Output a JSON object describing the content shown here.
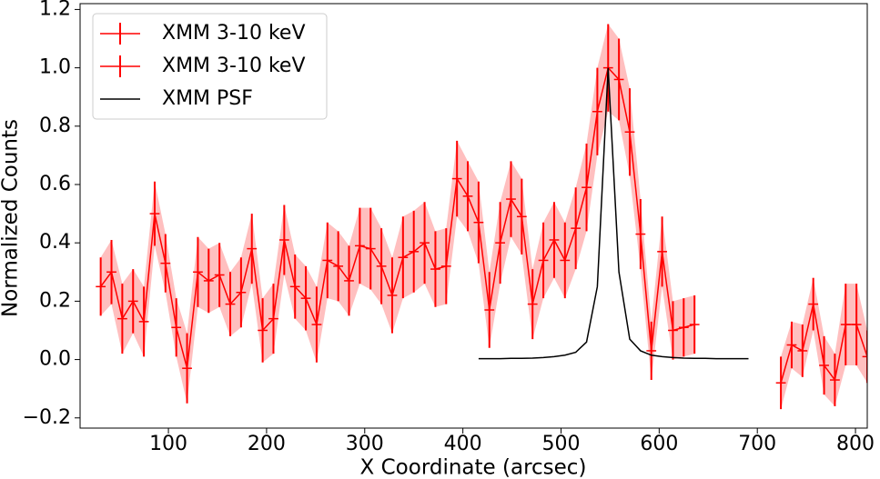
{
  "chart_data": {
    "type": "errorbar",
    "xlabel": "X Coordinate (arcsec)",
    "ylabel": "Normalized Counts",
    "xlim": [
      10,
      812
    ],
    "ylim": [
      -0.235,
      1.22
    ],
    "xticks": [
      100,
      200,
      300,
      400,
      500,
      600,
      700,
      800
    ],
    "yticks": [
      {
        "value": -0.2,
        "label": "−0.2"
      },
      {
        "value": 0,
        "label": "0.0"
      },
      0.2,
      0.4,
      0.6,
      0.8,
      {
        "value": 1,
        "label": "1.0"
      },
      1.2
    ],
    "xerr": 5,
    "legend_position": "upper left",
    "series": [
      {
        "name": "XMM 3-10 keV",
        "color": "#ff0000",
        "x": [
          31,
          42,
          53,
          64,
          75,
          86,
          97,
          108,
          119,
          130,
          141,
          152,
          163,
          174,
          185,
          196,
          207,
          218,
          229,
          240,
          251,
          262,
          273,
          284,
          295,
          306,
          317,
          328,
          339,
          350,
          361,
          372,
          383,
          394,
          405,
          416,
          427,
          438,
          449,
          460,
          471,
          482,
          493,
          504,
          515,
          526,
          537,
          548,
          559,
          570,
          581,
          592,
          603,
          614,
          625,
          636,
          647,
          658,
          669,
          680,
          691,
          702,
          713,
          724,
          735,
          746,
          757,
          768,
          779,
          790,
          801,
          812
        ],
        "values": [
          0.25,
          0.3,
          0.14,
          0.2,
          0.13,
          0.5,
          0.33,
          0.11,
          -0.03,
          0.3,
          0.27,
          0.29,
          0.19,
          0.23,
          0.38,
          0.1,
          0.14,
          0.41,
          0.25,
          0.21,
          0.12,
          0.34,
          0.32,
          0.27,
          0.39,
          0.38,
          0.32,
          0.22,
          0.35,
          0.37,
          0.4,
          0.31,
          0.32,
          0.62,
          0.56,
          0.47,
          0.17,
          0.4,
          0.55,
          0.49,
          0.19,
          0.34,
          0.41,
          0.34,
          0.45,
          0.59,
          0.85,
          1.0,
          0.96,
          0.78,
          0.43,
          0.03,
          0.37,
          0.1,
          0.11,
          0.12,
          null,
          null,
          null,
          null,
          null,
          null,
          null,
          -0.08,
          0.05,
          0.03,
          0.19,
          -0.02,
          -0.07,
          0.12,
          0.12,
          0.01
        ]
      },
      {
        "name": "XMM 3-10 keV",
        "color": "#ff0000",
        "fill_alpha": 0.25,
        "errors": [
          0.1,
          0.11,
          0.12,
          0.11,
          0.12,
          0.11,
          0.1,
          0.1,
          0.12,
          0.12,
          0.11,
          0.11,
          0.11,
          0.12,
          0.12,
          0.11,
          0.12,
          0.12,
          0.11,
          0.11,
          0.13,
          0.13,
          0.12,
          0.12,
          0.13,
          0.14,
          0.13,
          0.13,
          0.14,
          0.14,
          0.14,
          0.13,
          0.13,
          0.13,
          0.12,
          0.14,
          0.13,
          0.14,
          0.13,
          0.13,
          0.12,
          0.13,
          0.13,
          0.13,
          0.14,
          0.15,
          0.15,
          0.15,
          0.14,
          0.15,
          0.12,
          0.1,
          0.12,
          0.1,
          0.1,
          0.1,
          null,
          null,
          null,
          null,
          null,
          null,
          null,
          0.09,
          0.08,
          0.09,
          0.09,
          0.1,
          0.09,
          0.14,
          0.14,
          0.09
        ]
      },
      {
        "name": "XMM PSF",
        "color": "#000000",
        "x": [
          416,
          427,
          438,
          449,
          460,
          471,
          482,
          493,
          504,
          515,
          526,
          537,
          548,
          559,
          570,
          581,
          592,
          603,
          614,
          625,
          636,
          647,
          658,
          669,
          680,
          691
        ],
        "values": [
          0.003,
          0.003,
          0.003,
          0.004,
          0.004,
          0.005,
          0.007,
          0.01,
          0.015,
          0.025,
          0.06,
          0.25,
          1.0,
          0.3,
          0.07,
          0.03,
          0.015,
          0.01,
          0.007,
          0.005,
          0.004,
          0.004,
          0.003,
          0.003,
          0.003,
          0.003
        ]
      }
    ]
  }
}
